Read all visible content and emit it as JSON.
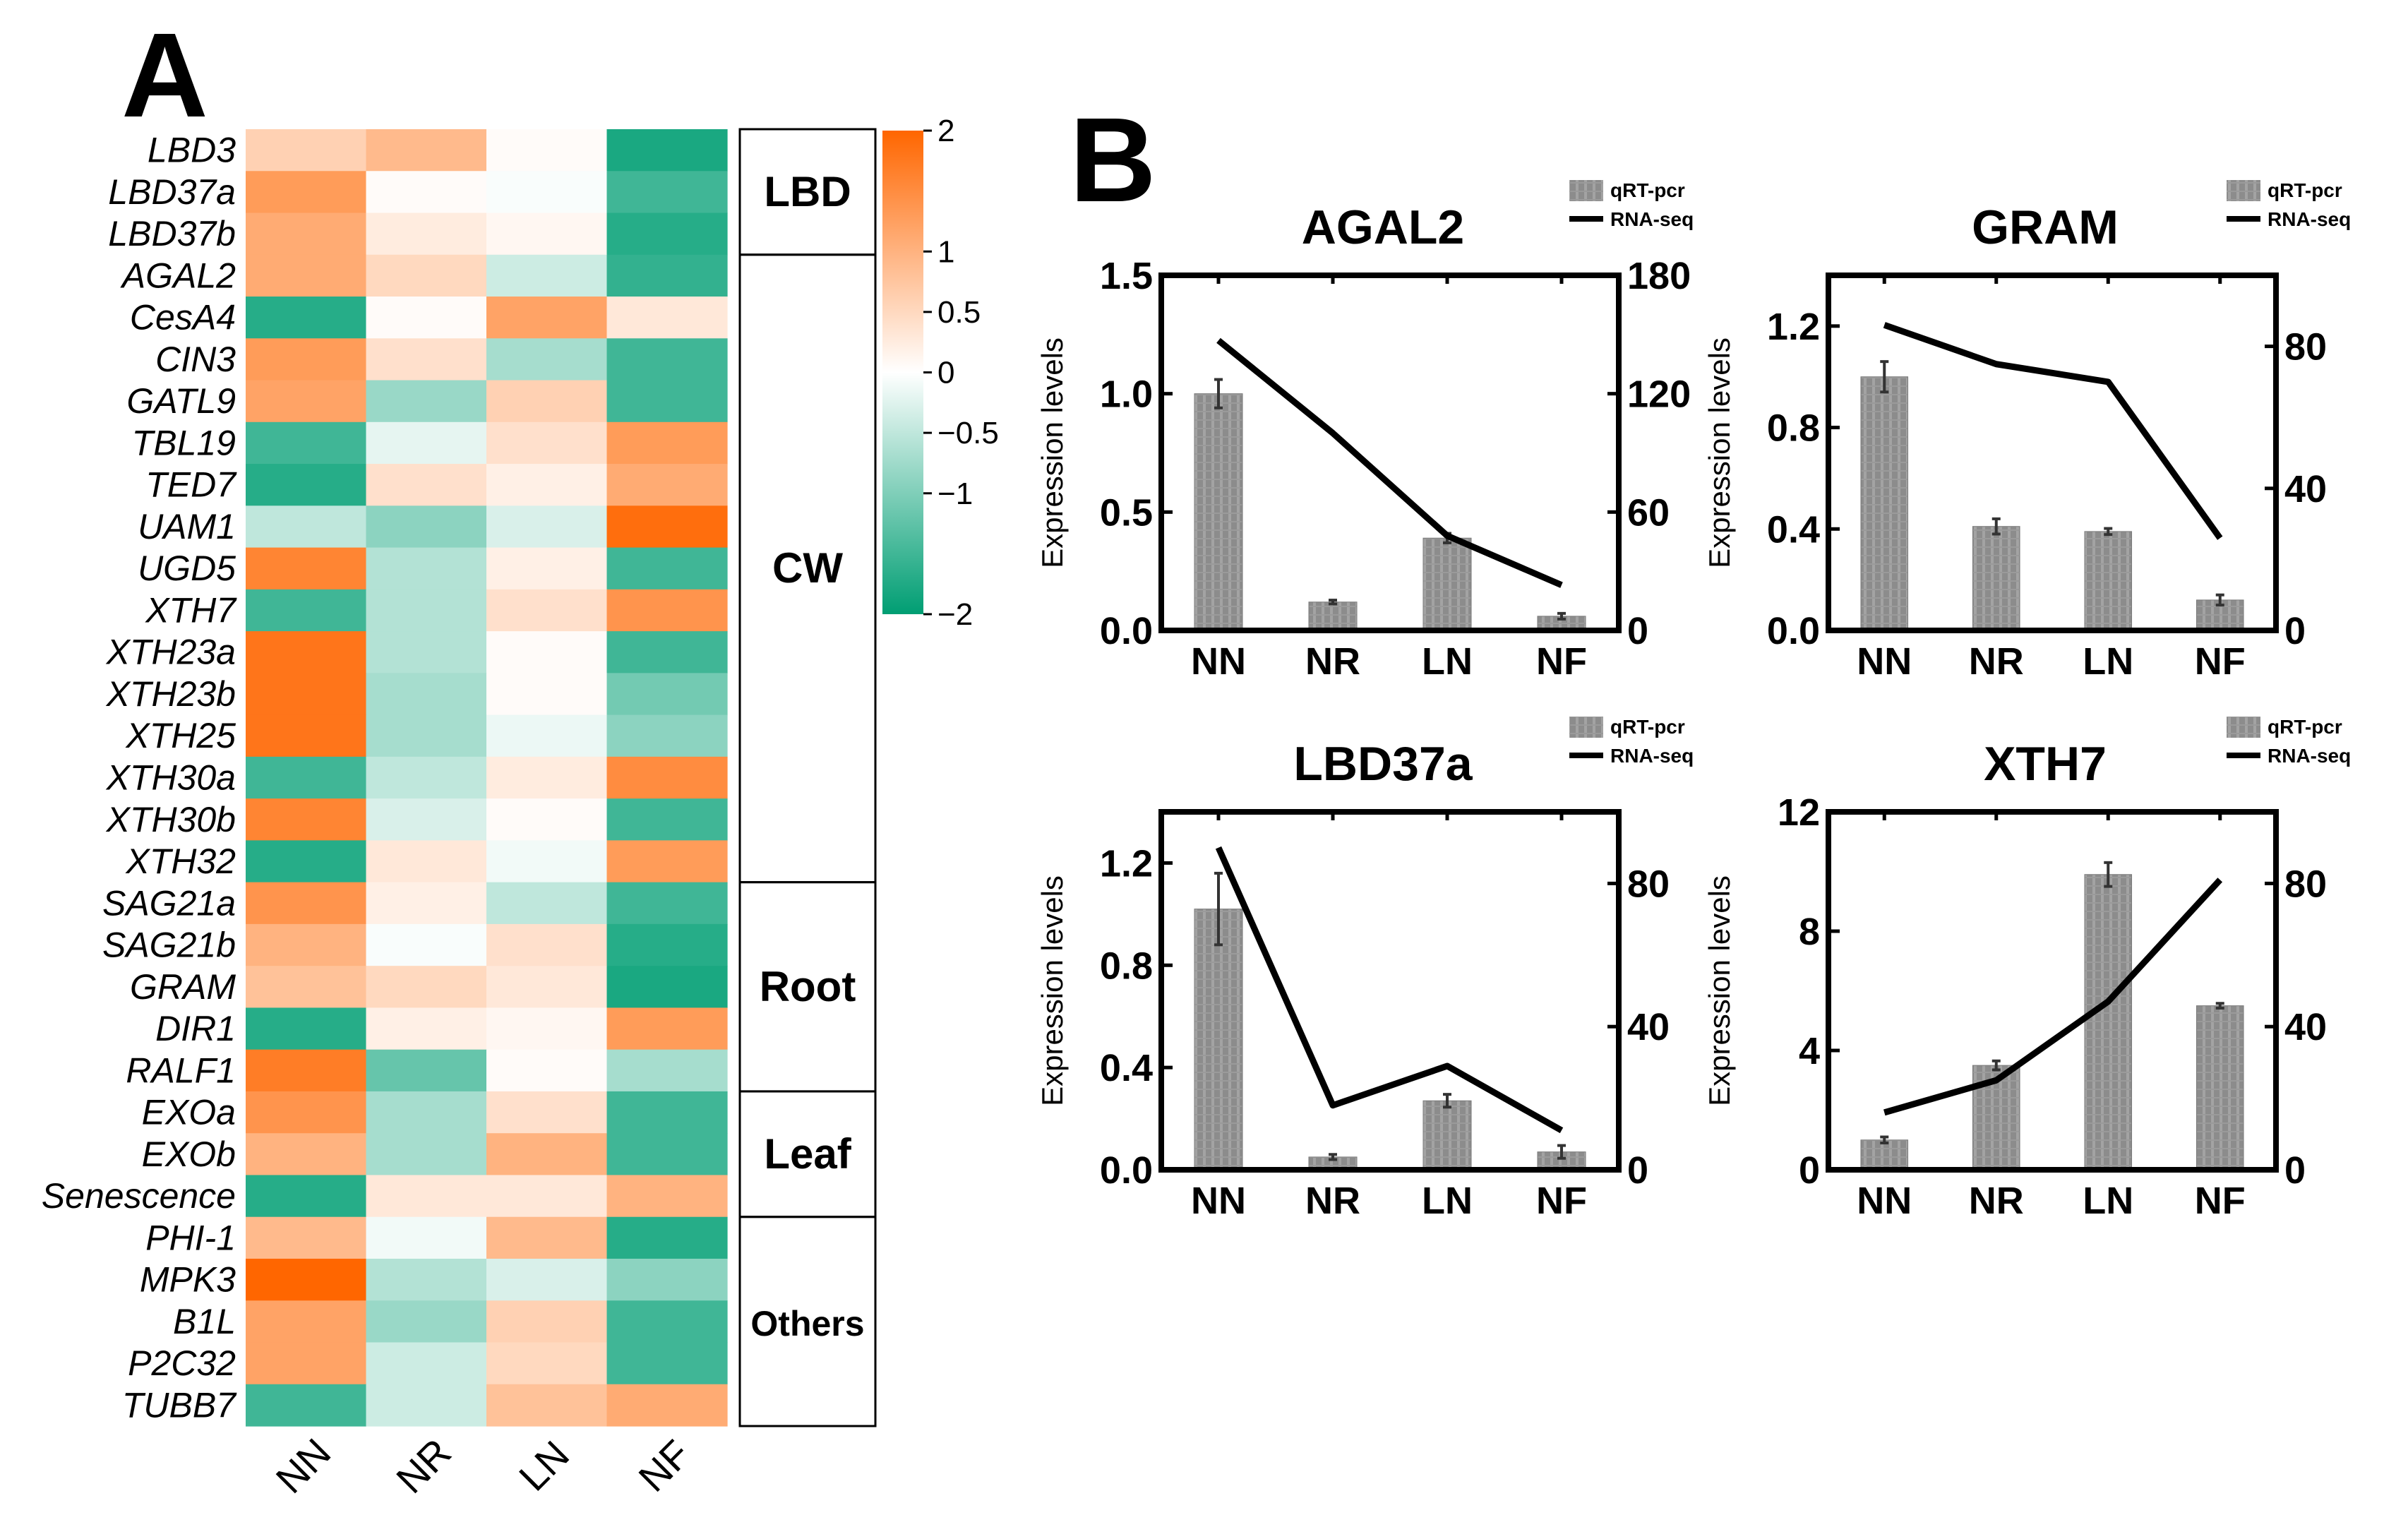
{
  "panel_labels": {
    "a": "A",
    "b": "B"
  },
  "chart_data": [
    {
      "type": "heatmap",
      "panel": "A",
      "columns": [
        "NN",
        "NR",
        "LN",
        "NF"
      ],
      "genes": [
        {
          "name": "LBD3",
          "values": [
            0.6,
            0.9,
            0.05,
            -1.8
          ]
        },
        {
          "name": "LBD37a",
          "values": [
            1.3,
            0.05,
            -0.05,
            -1.5
          ]
        },
        {
          "name": "LBD37b",
          "values": [
            1.1,
            0.25,
            0.1,
            -1.7
          ]
        },
        {
          "name": "AGAL2",
          "values": [
            1.1,
            0.5,
            -0.4,
            -1.6
          ]
        },
        {
          "name": "CesA4",
          "values": [
            -1.7,
            0.05,
            1.2,
            0.3
          ]
        },
        {
          "name": "CIN3",
          "values": [
            1.3,
            0.4,
            -0.7,
            -1.5
          ]
        },
        {
          "name": "GATL9",
          "values": [
            1.2,
            -0.8,
            0.6,
            -1.5
          ]
        },
        {
          "name": "TBL19",
          "values": [
            -1.5,
            -0.2,
            0.4,
            1.3
          ]
        },
        {
          "name": "TED7",
          "values": [
            -1.7,
            0.4,
            0.2,
            1.1
          ]
        },
        {
          "name": "UAM1",
          "values": [
            -0.5,
            -0.9,
            -0.3,
            1.9
          ]
        },
        {
          "name": "UGD5",
          "values": [
            1.6,
            -0.6,
            0.2,
            -1.5
          ]
        },
        {
          "name": "XTH7",
          "values": [
            -1.5,
            -0.6,
            0.4,
            1.4
          ]
        },
        {
          "name": "XTH23a",
          "values": [
            1.8,
            -0.6,
            0.05,
            -1.5
          ]
        },
        {
          "name": "XTH23b",
          "values": [
            1.8,
            -0.7,
            0.05,
            -1.1
          ]
        },
        {
          "name": "XTH25",
          "values": [
            1.8,
            -0.7,
            -0.15,
            -0.9
          ]
        },
        {
          "name": "XTH30a",
          "values": [
            -1.5,
            -0.5,
            0.25,
            1.5
          ]
        },
        {
          "name": "XTH30b",
          "values": [
            1.6,
            -0.3,
            0.05,
            -1.5
          ]
        },
        {
          "name": "XTH32",
          "values": [
            -1.7,
            0.3,
            -0.1,
            1.3
          ]
        },
        {
          "name": "SAG21a",
          "values": [
            1.4,
            0.2,
            -0.5,
            -1.5
          ]
        },
        {
          "name": "SAG21b",
          "values": [
            1.0,
            -0.05,
            0.4,
            -1.7
          ]
        },
        {
          "name": "GRAM",
          "values": [
            0.8,
            0.5,
            0.3,
            -1.8
          ]
        },
        {
          "name": "DIR1",
          "values": [
            -1.7,
            0.2,
            0.1,
            1.3
          ]
        },
        {
          "name": "RALF1",
          "values": [
            1.7,
            -1.2,
            0.05,
            -0.7
          ]
        },
        {
          "name": "EXOa",
          "values": [
            1.4,
            -0.7,
            0.4,
            -1.5
          ]
        },
        {
          "name": "EXOb",
          "values": [
            1.0,
            -0.7,
            1.0,
            -1.5
          ]
        },
        {
          "name": "Senescence",
          "values": [
            -1.7,
            0.3,
            0.3,
            1.0
          ]
        },
        {
          "name": "PHI-1",
          "values": [
            0.9,
            -0.1,
            0.9,
            -1.7
          ]
        },
        {
          "name": "MPK3",
          "values": [
            2.0,
            -0.6,
            -0.3,
            -0.9
          ]
        },
        {
          "name": "B1L",
          "values": [
            1.2,
            -0.8,
            0.6,
            -1.5
          ]
        },
        {
          "name": "P2C32",
          "values": [
            1.2,
            -0.4,
            0.5,
            -1.5
          ]
        },
        {
          "name": "TUBB7",
          "values": [
            -1.5,
            -0.4,
            0.8,
            1.1
          ]
        }
      ],
      "groups": [
        {
          "label": "LBD",
          "start": 0,
          "end": 2
        },
        {
          "label": "CW",
          "start": 3,
          "end": 17
        },
        {
          "label": "Root",
          "start": 18,
          "end": 22
        },
        {
          "label": "Leaf",
          "start": 23,
          "end": 25
        },
        {
          "label": "Others",
          "start": 26,
          "end": 30
        }
      ],
      "colorbar": {
        "min": -2,
        "max": 2,
        "ticks": [
          2,
          1,
          0.5,
          0,
          -0.5,
          -1,
          -2
        ],
        "tick_labels": [
          "2",
          "1",
          "0.5",
          "0",
          "−0.5",
          "−1",
          "−2"
        ],
        "low_color": "#009E73",
        "mid_color": "#FFFFFF",
        "high_color": "#FF6600"
      }
    },
    {
      "type": "bar+line",
      "panel": "B",
      "title": "AGAL2",
      "categories": [
        "NN",
        "NR",
        "LN",
        "NF"
      ],
      "ylabel": "Expression levels",
      "ylim": [
        0,
        1.5
      ],
      "yticks": [
        0.0,
        0.5,
        1.0,
        1.5
      ],
      "ytick_labels": [
        "0.0",
        "0.5",
        "1.0",
        "1.5"
      ],
      "y2lim": [
        0,
        180
      ],
      "y2ticks": [
        0,
        60,
        120,
        180
      ],
      "series": [
        {
          "name": "qRT-pcr",
          "kind": "bar",
          "axis": "left",
          "values": [
            1.0,
            0.12,
            0.39,
            0.06
          ],
          "errors": [
            0.06,
            0.008,
            0.02,
            0.012
          ]
        },
        {
          "name": "RNA-seq",
          "kind": "line",
          "axis": "right",
          "values": [
            147,
            100,
            48,
            23
          ]
        }
      ],
      "legend": [
        "qRT-pcr",
        "RNA-seq"
      ]
    },
    {
      "type": "bar+line",
      "panel": "B",
      "title": "GRAM",
      "categories": [
        "NN",
        "NR",
        "LN",
        "NF"
      ],
      "ylabel": "Expression levels",
      "ylim": [
        0,
        1.4
      ],
      "yticks": [
        0.0,
        0.4,
        0.8,
        1.2
      ],
      "ytick_labels": [
        "0.0",
        "0.4",
        "0.8",
        "1.2"
      ],
      "y2lim": [
        0,
        100
      ],
      "y2ticks": [
        0,
        40,
        80
      ],
      "series": [
        {
          "name": "qRT-pcr",
          "kind": "bar",
          "axis": "left",
          "values": [
            1.0,
            0.41,
            0.39,
            0.12
          ],
          "errors": [
            0.06,
            0.03,
            0.012,
            0.02
          ]
        },
        {
          "name": "RNA-seq",
          "kind": "line",
          "axis": "right",
          "values": [
            86,
            75,
            70,
            26
          ]
        }
      ],
      "legend": [
        "qRT-pcr",
        "RNA-seq"
      ]
    },
    {
      "type": "bar+line",
      "panel": "B",
      "title": "LBD37a",
      "categories": [
        "NN",
        "NR",
        "LN",
        "NF"
      ],
      "ylabel": "Expression levels",
      "ylim": [
        0,
        1.4
      ],
      "yticks": [
        0.0,
        0.4,
        0.8,
        1.2
      ],
      "ytick_labels": [
        "0.0",
        "0.4",
        "0.8",
        "1.2"
      ],
      "y2lim": [
        0,
        100
      ],
      "y2ticks": [
        0,
        40,
        80
      ],
      "series": [
        {
          "name": "qRT-pcr",
          "kind": "bar",
          "axis": "left",
          "values": [
            1.02,
            0.05,
            0.27,
            0.07
          ],
          "errors": [
            0.14,
            0.01,
            0.025,
            0.025
          ]
        },
        {
          "name": "RNA-seq",
          "kind": "line",
          "axis": "right",
          "values": [
            90,
            18,
            29,
            11
          ]
        }
      ],
      "legend": [
        "qRT-pcr",
        "RNA-seq"
      ]
    },
    {
      "type": "bar+line",
      "panel": "B",
      "title": "XTH7",
      "categories": [
        "NN",
        "NR",
        "LN",
        "NF"
      ],
      "ylabel": "Expression levels",
      "ylim": [
        0,
        12
      ],
      "yticks": [
        0,
        4,
        8,
        12
      ],
      "ytick_labels": [
        "0",
        "4",
        "8",
        "12"
      ],
      "y2lim": [
        0,
        100
      ],
      "y2ticks": [
        0,
        40,
        80
      ],
      "series": [
        {
          "name": "qRT-pcr",
          "kind": "bar",
          "axis": "left",
          "values": [
            1.0,
            3.5,
            9.9,
            5.5
          ],
          "errors": [
            0.1,
            0.15,
            0.4,
            0.08
          ]
        },
        {
          "name": "RNA-seq",
          "kind": "line",
          "axis": "right",
          "values": [
            16,
            25,
            47,
            81
          ]
        }
      ],
      "legend": [
        "qRT-pcr",
        "RNA-seq"
      ]
    }
  ]
}
